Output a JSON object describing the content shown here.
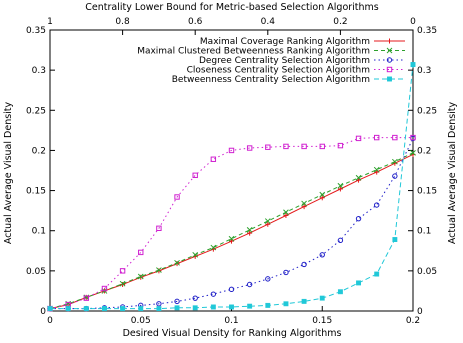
{
  "chart_data": {
    "type": "line",
    "title": "",
    "xlabel": "Desired Visual Density for Ranking Algorithms",
    "ylabel": "Actual Average Visual Density",
    "x2label": "Centrality Lower Bound for Metric-based Selection Algorithms",
    "y2label": "Actual Average Visual Density",
    "xlim": [
      0,
      0.2
    ],
    "ylim": [
      0,
      0.35
    ],
    "x2lim": [
      1,
      0
    ],
    "x_ticks": [
      "0",
      "0.05",
      "0.1",
      "0.15",
      "0.2"
    ],
    "y_ticks": [
      "0",
      "0.05",
      "0.1",
      "0.15",
      "0.2",
      "0.25",
      "0.3",
      "0.35"
    ],
    "x2_ticks": [
      "1",
      "0.8",
      "0.6",
      "0.4",
      "0.2",
      "0"
    ],
    "y2_ticks": [
      "0",
      "0.05",
      "0.1",
      "0.15",
      "0.2",
      "0.25",
      "0.3",
      "0.35"
    ],
    "grid": false,
    "legend_position": "top-right",
    "series": [
      {
        "name": "Maximal Coverage Ranking Algorithm",
        "axis": "bottom",
        "color": "#e41a1c",
        "marker": "plus",
        "dash": "",
        "x": [
          0,
          0.01,
          0.02,
          0.03,
          0.04,
          0.05,
          0.06,
          0.07,
          0.08,
          0.09,
          0.1,
          0.11,
          0.12,
          0.13,
          0.14,
          0.15,
          0.16,
          0.17,
          0.18,
          0.19,
          0.2
        ],
        "y": [
          0.003,
          0.008,
          0.017,
          0.025,
          0.033,
          0.042,
          0.05,
          0.059,
          0.068,
          0.077,
          0.087,
          0.097,
          0.108,
          0.119,
          0.13,
          0.141,
          0.152,
          0.163,
          0.173,
          0.184,
          0.195
        ]
      },
      {
        "name": "Maximal Clustered Betweenness Ranking Algorithm",
        "axis": "bottom",
        "color": "#2ca02c",
        "marker": "cross",
        "dash": "4,3",
        "x": [
          0,
          0.01,
          0.02,
          0.03,
          0.04,
          0.05,
          0.06,
          0.07,
          0.08,
          0.09,
          0.1,
          0.11,
          0.12,
          0.13,
          0.14,
          0.15,
          0.16,
          0.17,
          0.18,
          0.19,
          0.2
        ],
        "y": [
          0.003,
          0.009,
          0.017,
          0.025,
          0.034,
          0.043,
          0.051,
          0.06,
          0.07,
          0.079,
          0.09,
          0.101,
          0.112,
          0.123,
          0.134,
          0.145,
          0.156,
          0.166,
          0.176,
          0.186,
          0.197
        ]
      },
      {
        "name": "Degree Centrality Selection Algorithm",
        "axis": "top",
        "color": "#1f1fc8",
        "marker": "circle",
        "dash": "1.5,3",
        "x": [
          1,
          0.95,
          0.9,
          0.85,
          0.8,
          0.75,
          0.7,
          0.65,
          0.6,
          0.55,
          0.5,
          0.45,
          0.4,
          0.35,
          0.3,
          0.25,
          0.2,
          0.15,
          0.1,
          0.05,
          0
        ],
        "y": [
          0.003,
          0.003,
          0.003,
          0.004,
          0.005,
          0.007,
          0.009,
          0.012,
          0.016,
          0.021,
          0.027,
          0.033,
          0.04,
          0.048,
          0.058,
          0.07,
          0.088,
          0.115,
          0.132,
          0.168,
          0.215
        ]
      },
      {
        "name": "Closeness Centrality Selection Algorithm",
        "axis": "top",
        "color": "#d020d0",
        "marker": "square",
        "dash": "1.5,3",
        "x": [
          1,
          0.95,
          0.9,
          0.85,
          0.8,
          0.75,
          0.7,
          0.65,
          0.6,
          0.55,
          0.5,
          0.45,
          0.4,
          0.35,
          0.3,
          0.25,
          0.2,
          0.15,
          0.1,
          0.05,
          0
        ],
        "y": [
          0.003,
          0.008,
          0.016,
          0.028,
          0.05,
          0.073,
          0.103,
          0.142,
          0.169,
          0.189,
          0.2,
          0.203,
          0.204,
          0.205,
          0.205,
          0.205,
          0.206,
          0.215,
          0.216,
          0.216,
          0.216
        ]
      },
      {
        "name": "Betweenness Centrality Selection Algorithm",
        "axis": "top",
        "color": "#20c8d8",
        "marker": "filled-square",
        "dash": "5,3",
        "x": [
          1,
          0.95,
          0.9,
          0.85,
          0.8,
          0.75,
          0.7,
          0.65,
          0.6,
          0.55,
          0.5,
          0.45,
          0.4,
          0.35,
          0.3,
          0.25,
          0.2,
          0.15,
          0.1,
          0.05,
          0
        ],
        "y": [
          0.003,
          0.003,
          0.003,
          0.003,
          0.003,
          0.003,
          0.003,
          0.004,
          0.004,
          0.005,
          0.005,
          0.006,
          0.007,
          0.009,
          0.012,
          0.016,
          0.024,
          0.035,
          0.046,
          0.089,
          0.307
        ]
      }
    ]
  }
}
